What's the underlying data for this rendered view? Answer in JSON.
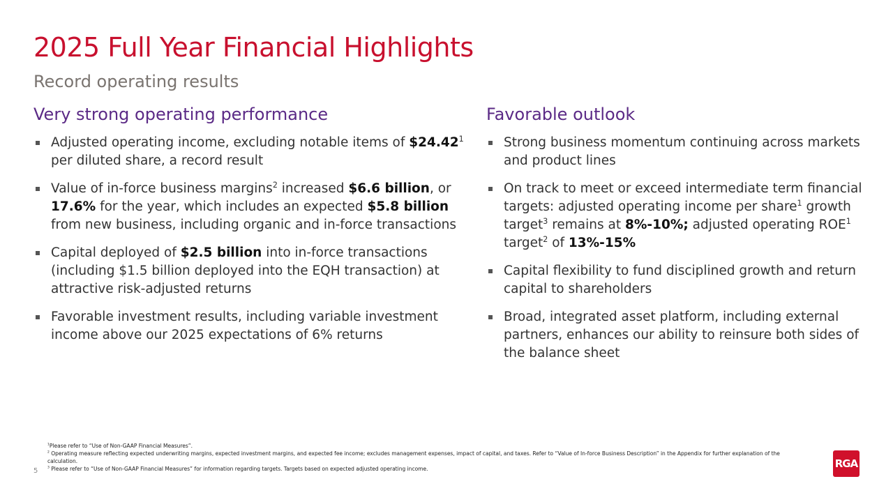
{
  "header": {
    "title": "2025 Full Year Financial Highlights",
    "subtitle": "Record operating results"
  },
  "columns": [
    {
      "heading": "Very strong operating performance",
      "bullets": [
        [
          "Adjusted operating income, excluding notable items of ",
          {
            "text": "$24.42",
            "style": "bold"
          },
          {
            "text": "1",
            "style": "sup"
          },
          " per diluted share, a record result"
        ],
        [
          "Value of in-force business margins",
          {
            "text": "2",
            "style": "sup"
          },
          " increased ",
          {
            "text": "$6.6 billion",
            "style": "bold"
          },
          ", or ",
          {
            "text": "17.6%",
            "style": "bold"
          },
          " for the year, which includes an expected ",
          {
            "text": "$5.8 billion",
            "style": "bold"
          },
          " from new business, including organic and in-force transactions"
        ],
        [
          "Capital deployed of ",
          {
            "text": "$2.5 billion",
            "style": "bold"
          },
          " into in-force transactions (including $1.5 billion deployed into the EQH transaction) at attractive risk-adjusted returns"
        ],
        [
          "Favorable investment results, including variable investment income above our 2025 expectations of 6% returns"
        ]
      ]
    },
    {
      "heading": "Favorable outlook",
      "bullets": [
        [
          "Strong business momentum continuing across markets and product lines"
        ],
        [
          "On track to meet or exceed intermediate term financial targets: adjusted operating income per share",
          {
            "text": "1",
            "style": "sup"
          },
          " growth target",
          {
            "text": "3",
            "style": "sup"
          },
          " remains at ",
          {
            "text": "8%-10%;",
            "style": "bold"
          },
          " adjusted operating ROE",
          {
            "text": "1",
            "style": "sup"
          },
          " target",
          {
            "text": "2",
            "style": "sup"
          },
          " of ",
          {
            "text": "13%-15%",
            "style": "bold"
          }
        ],
        [
          "Capital flexibility to fund disciplined growth and return capital to shareholders"
        ],
        [
          "Broad, integrated asset platform, including external partners, enhances our ability to reinsure both sides of the balance sheet"
        ]
      ]
    }
  ],
  "footnotes": [
    [
      {
        "text": "1",
        "style": "sup"
      },
      "Please refer to “Use of Non-GAAP Financial Measures”."
    ],
    [
      {
        "text": "2",
        "style": "sup"
      },
      " Operating measure reflecting expected underwriting margins, expected investment margins, and expected fee income; excludes management expenses, impact of capital, and taxes. Refer to “Value of In-force Business Description” in the Appendix for further explanation of the calculation."
    ],
    [
      {
        "text": "3",
        "style": "sup"
      },
      " Please refer to “Use of Non-GAAP Financial Measures” for information regarding targets. Targets based on expected adjusted operating income."
    ]
  ],
  "page_number": "5",
  "logo": "RGA"
}
